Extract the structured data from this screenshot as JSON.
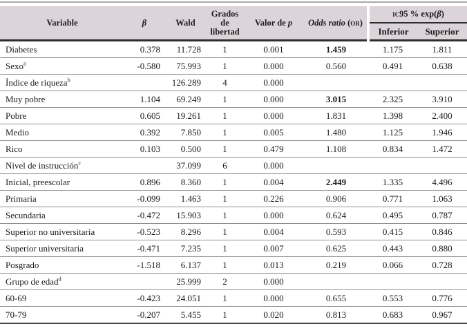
{
  "table": {
    "header": {
      "variable": "Variable",
      "beta": "β",
      "wald": "Wald",
      "df_line1": "Grados de",
      "df_line2": "libertad",
      "p_prefix": "Valor de ",
      "p_italic": "p",
      "or_italic": "Odds ratio",
      "or_open": " (",
      "or_smallcaps": "or",
      "or_close": ")",
      "ci_smallcaps": "ic",
      "ci_mid": "95 % exp(",
      "ci_beta": "β",
      "ci_close": ")",
      "ci_lower": "Inferior",
      "ci_upper": "Superior"
    },
    "rows": [
      {
        "variable": "Diabetes",
        "sup": "",
        "beta": "0.378",
        "wald": "11.728",
        "df": "1",
        "p": "0.001",
        "or": "1.459",
        "or_bold": true,
        "lower": "1.175",
        "upper": "1.811"
      },
      {
        "variable": "Sexo",
        "sup": "a",
        "beta": "-0.580",
        "wald": "75.993",
        "df": "1",
        "p": "0.000",
        "or": "0.560",
        "or_bold": false,
        "lower": "0.491",
        "upper": "0.638"
      },
      {
        "variable": "Índice de riqueza",
        "sup": "b",
        "beta": "",
        "wald": "126.289",
        "df": "4",
        "p": "0.000",
        "or": "",
        "or_bold": false,
        "lower": "",
        "upper": ""
      },
      {
        "variable": "Muy pobre",
        "sup": "",
        "beta": "1.104",
        "wald": "69.249",
        "df": "1",
        "p": "0.000",
        "or": "3.015",
        "or_bold": true,
        "lower": "2.325",
        "upper": "3.910"
      },
      {
        "variable": "Pobre",
        "sup": "",
        "beta": "0.605",
        "wald": "19.261",
        "df": "1",
        "p": "0.000",
        "or": "1.831",
        "or_bold": false,
        "lower": "1.398",
        "upper": "2.400"
      },
      {
        "variable": "Medio",
        "sup": "",
        "beta": "0.392",
        "wald": "7.850",
        "df": "1",
        "p": "0.005",
        "or": "1.480",
        "or_bold": false,
        "lower": "1.125",
        "upper": "1.946"
      },
      {
        "variable": "Rico",
        "sup": "",
        "beta": "0.103",
        "wald": "0.500",
        "df": "1",
        "p": "0.479",
        "or": "1.108",
        "or_bold": false,
        "lower": "0.834",
        "upper": "1.472"
      },
      {
        "variable": "Nivel de instrucción",
        "sup": "c",
        "beta": "",
        "wald": "37.099",
        "df": "6",
        "p": "0.000",
        "or": "",
        "or_bold": false,
        "lower": "",
        "upper": ""
      },
      {
        "variable": "Inicial, preescolar",
        "sup": "",
        "beta": "0.896",
        "wald": "8.360",
        "df": "1",
        "p": "0.004",
        "or": "2.449",
        "or_bold": true,
        "lower": "1.335",
        "upper": "4.496"
      },
      {
        "variable": "Primaria",
        "sup": "",
        "beta": "-0.099",
        "wald": "1.463",
        "df": "1",
        "p": "0.226",
        "or": "0.906",
        "or_bold": false,
        "lower": "0.771",
        "upper": "1.063"
      },
      {
        "variable": "Secundaria",
        "sup": "",
        "beta": "-0.472",
        "wald": "15.903",
        "df": "1",
        "p": "0.000",
        "or": "0.624",
        "or_bold": false,
        "lower": "0.495",
        "upper": "0.787"
      },
      {
        "variable": "Superior no universitaria",
        "sup": "",
        "beta": "-0.523",
        "wald": "8.296",
        "df": "1",
        "p": "0.004",
        "or": "0.593",
        "or_bold": false,
        "lower": "0.415",
        "upper": "0.846"
      },
      {
        "variable": "Superior universitaria",
        "sup": "",
        "beta": "-0.471",
        "wald": "7.235",
        "df": "1",
        "p": "0.007",
        "or": "0.625",
        "or_bold": false,
        "lower": "0.443",
        "upper": "0.880"
      },
      {
        "variable": "Posgrado",
        "sup": "",
        "beta": "-1.518",
        "wald": "6.137",
        "df": "1",
        "p": "0.013",
        "or": "0.219",
        "or_bold": false,
        "lower": "0.066",
        "upper": "0.728"
      },
      {
        "variable": "Grupo de edad",
        "sup": "d",
        "beta": "",
        "wald": "25.999",
        "df": "2",
        "p": "0.000",
        "or": "",
        "or_bold": false,
        "lower": "",
        "upper": ""
      },
      {
        "variable": "60-69",
        "sup": "",
        "beta": "-0.423",
        "wald": "24.051",
        "df": "1",
        "p": "0.000",
        "or": "0.655",
        "or_bold": false,
        "lower": "0.553",
        "upper": "0.776"
      },
      {
        "variable": "70-79",
        "sup": "",
        "beta": "-0.207",
        "wald": "5.455",
        "df": "1",
        "p": "0.020",
        "or": "0.813",
        "or_bold": false,
        "lower": "0.683",
        "upper": "0.967"
      }
    ]
  },
  "colors": {
    "header_bg": "#ddd4da",
    "row_line": "#8f8f8f",
    "heavy_line": "#2e2e2e",
    "text": "#1b1b1b"
  }
}
